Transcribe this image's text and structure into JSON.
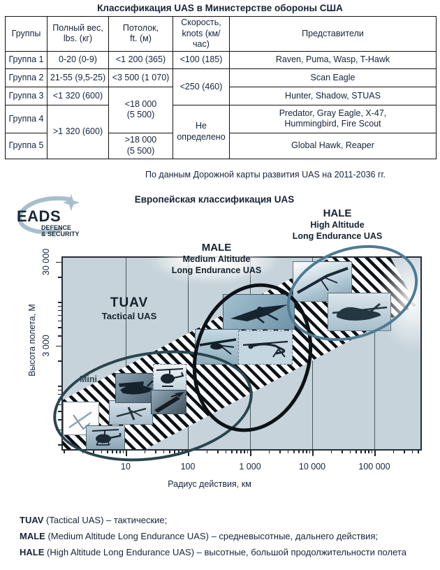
{
  "title": "Классификация  UAS в Министерстве  обороны США",
  "byline": "По данным  Дорожной карты развития  UAS на 2011-2036  гг.",
  "table": {
    "headers": [
      "Группы",
      "Полный вес,\nlbs. (кг)",
      "Потолок,\nft. (м)",
      "Скорость,\nknots (км/час)",
      "Представители"
    ],
    "rows": [
      [
        {
          "t": "Группа 1"
        },
        {
          "t": "0-20 (0-9)"
        },
        {
          "t": "<1 200 (365)"
        },
        {
          "t": "<100 (185)"
        },
        {
          "t": "Raven, Puma,  Wasp, T-Hawk"
        }
      ],
      [
        {
          "t": "Группа 2"
        },
        {
          "t": "21-55 (9,5-25)"
        },
        {
          "t": "<3 500 (1 070)"
        },
        {
          "t": "<250 (460)",
          "rs": 2
        },
        {
          "t": "Scan Eagle"
        }
      ],
      [
        {
          "t": "Группа 3"
        },
        {
          "t": "<1 320 (600)"
        },
        {
          "t": "<18 000\n(5 500)",
          "rs": 2
        },
        {
          "t": "Hunter, Shadow, STUAS"
        }
      ],
      [
        {
          "t": "Группа 4"
        },
        {
          "t": ">1 320 (600)",
          "rs": 2
        },
        {
          "t": "Не\nопределено",
          "rs": 2
        },
        {
          "t": "Predator, Gray Eagle, X-47,\nHummingbird, Fire Scout"
        }
      ],
      [
        {
          "t": "Группа 5"
        },
        {
          "t": ">18 000\n(5 500)"
        },
        {
          "t": "Global Hawk, Reaper"
        }
      ]
    ]
  },
  "chart": {
    "title": "Европейская  классификация  UAS",
    "logo": {
      "name": "EADS",
      "line1": "DEFENCE",
      "line2": "& SECURITY"
    },
    "regions": {
      "tuav": {
        "abbr": "TUAV",
        "label": "Tactical UAS"
      },
      "mini": {
        "label": "Mini"
      },
      "male": {
        "abbr": "MALE",
        "lines": [
          "Medium Altitude",
          "Long Endurance UAS"
        ]
      },
      "hale": {
        "abbr": "HALE",
        "lines": [
          "High Altitude",
          "Long Endurance UAS"
        ]
      }
    },
    "x_axis": {
      "label": "Радиус действия, км",
      "ticks": [
        "10",
        "100",
        "1 000",
        "10 000",
        "100 000"
      ]
    },
    "y_axis": {
      "label": "Высота полета, М",
      "ticks": [
        "30 000",
        "3 000"
      ]
    },
    "figures": [
      "glider-sketch-photo",
      "mini-helicopter-photo",
      "small-uav-photo",
      "prop-uav-photo",
      "helicopter-uav-photo",
      "rail-launcher-photo",
      "tactical-glider-photo",
      "predator-photo",
      "jet-uav-photo",
      "soaring-glider-photo",
      "global-hawk-photo"
    ]
  },
  "legend": [
    {
      "abbr": "TUAV",
      "rest": " (Tactical UAS) – тактические;"
    },
    {
      "abbr": "MALE",
      "rest": " (Medium Altitude Long Endurance UAS) –  средневысотные, дальнего действия;"
    },
    {
      "abbr": "HALE",
      "rest": " (High Altitude Long Endurance UAS) – высотные,  большой продолжительности полета"
    }
  ],
  "colors": {
    "text": "#17233a",
    "plot_background": "#c6d3da",
    "hatch_stripe": "#0e1116",
    "mini_ellipse": "#29454f",
    "male_ellipse": "#0d1216",
    "hale_ellipse": "#4d7b95",
    "logo_swoosh": "#a6bfca"
  },
  "chart_data": {
    "type": "scatter",
    "title": "Европейская классификация UAS",
    "xlabel": "Радиус действия, км",
    "ylabel": "Высота полета, М",
    "x_scale": "log",
    "y_scale": "log",
    "x_ticks": [
      10,
      100,
      1000,
      10000,
      100000
    ],
    "y_ticks": [
      3000,
      30000
    ],
    "xlim": [
      1,
      700000
    ],
    "ylim": [
      170,
      40000
    ],
    "regions": [
      {
        "name": "Mini",
        "radius_km": [
          1,
          30
        ],
        "altitude_m": [
          150,
          1500
        ]
      },
      {
        "name": "TUAV (Tactical UAS)",
        "radius_km": [
          10,
          300
        ],
        "altitude_m": [
          300,
          5000
        ]
      },
      {
        "name": "MALE (Medium Altitude Long Endurance UAS)",
        "radius_km": [
          100,
          2000
        ],
        "altitude_m": [
          1500,
          15000
        ]
      },
      {
        "name": "HALE (High Altitude Long Endurance UAS)",
        "radius_km": [
          1000,
          100000
        ],
        "altitude_m": [
          8000,
          35000
        ]
      }
    ],
    "annotations": [
      "Диагональная штрихованная полоса с фотографиями БПЛА от Mini до HALE"
    ],
    "grid": true,
    "legend_position": "none"
  }
}
